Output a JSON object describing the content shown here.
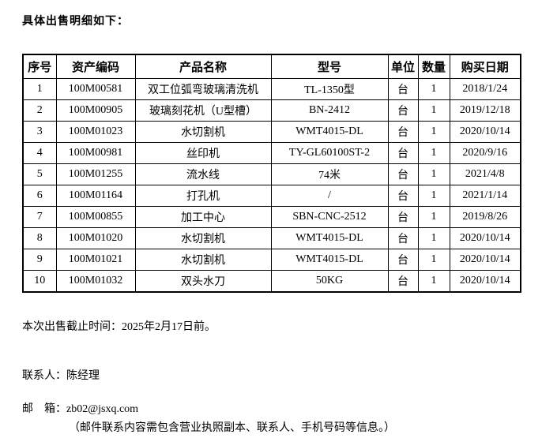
{
  "page": {
    "intro": "具体出售明细如下：",
    "deadline": "本次出售截止时间：2025年2月17日前。",
    "contact": "联系人：陈经理",
    "email_label": "邮　箱：",
    "email": "zb02@jsxq.com",
    "email_note": "（邮件联系内容需包含营业执照副本、联系人、手机号码等信息。）"
  },
  "table": {
    "headers": [
      "序号",
      "资产编码",
      "产品名称",
      "型号",
      "单位",
      "数量",
      "购买日期"
    ],
    "rows": [
      [
        "1",
        "100M00581",
        "双工位弧弯玻璃清洗机",
        "TL-1350型",
        "台",
        "1",
        "2018/1/24"
      ],
      [
        "2",
        "100M00905",
        "玻璃刻花机（U型槽）",
        "BN-2412",
        "台",
        "1",
        "2019/12/18"
      ],
      [
        "3",
        "100M01023",
        "水切割机",
        "WMT4015-DL",
        "台",
        "1",
        "2020/10/14"
      ],
      [
        "4",
        "100M00981",
        "丝印机",
        "TY-GL60100ST-2",
        "台",
        "1",
        "2020/9/16"
      ],
      [
        "5",
        "100M01255",
        "流水线",
        "74米",
        "台",
        "1",
        "2021/4/8"
      ],
      [
        "6",
        "100M01164",
        "打孔机",
        "/",
        "台",
        "1",
        "2021/1/14"
      ],
      [
        "7",
        "100M00855",
        "加工中心",
        "SBN-CNC-2512",
        "台",
        "1",
        "2019/8/26"
      ],
      [
        "8",
        "100M01020",
        "水切割机",
        "WMT4015-DL",
        "台",
        "1",
        "2020/10/14"
      ],
      [
        "9",
        "100M01021",
        "水切割机",
        "WMT4015-DL",
        "台",
        "1",
        "2020/10/14"
      ],
      [
        "10",
        "100M01032",
        "双头水刀",
        "50KG",
        "台",
        "1",
        "2020/10/14"
      ]
    ]
  }
}
